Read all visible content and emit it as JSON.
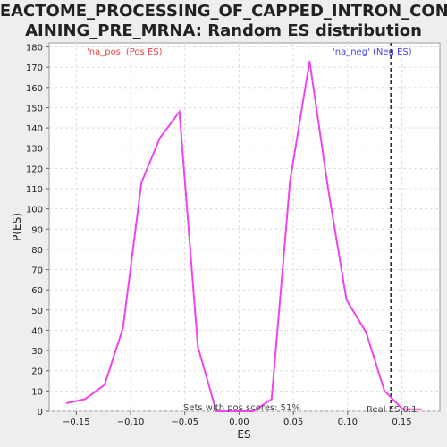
{
  "chart_data": {
    "type": "line",
    "title_lines": [
      "REACTOME_PROCESSING_OF_CAPPED_INTRON_CONT",
      "AINING_PRE_MRNA: Random ES distribution"
    ],
    "xlabel": "ES",
    "ylabel": "P(ES)",
    "xlim": [
      -0.175,
      0.185
    ],
    "ylim": [
      0,
      182
    ],
    "xticks": [
      -0.15,
      -0.1,
      -0.05,
      0.0,
      0.05,
      0.1,
      0.15
    ],
    "xtick_labels": [
      "−0.15",
      "−0.10",
      "−0.05",
      "0.00",
      "0.05",
      "0.10",
      "0.15"
    ],
    "yticks": [
      0,
      10,
      20,
      30,
      40,
      50,
      60,
      70,
      80,
      90,
      100,
      110,
      120,
      130,
      140,
      150,
      160,
      170,
      180
    ],
    "grid": true,
    "series": [
      {
        "color": "#ee44ee",
        "x": [
          -0.159,
          -0.142,
          -0.124,
          -0.107,
          -0.09,
          -0.073,
          -0.055,
          -0.038,
          -0.021,
          -0.004,
          0.013,
          0.03,
          0.047,
          0.065,
          0.082,
          0.099,
          0.117,
          0.134,
          0.151,
          0.168
        ],
        "y": [
          4,
          6,
          13,
          41,
          113,
          135,
          148,
          32,
          0,
          0,
          0,
          6,
          114,
          173,
          110,
          55,
          39,
          10,
          1,
          1
        ]
      }
    ],
    "real_es_x": 0.14,
    "annotations": {
      "na_pos": "'na_pos' (Pos ES)",
      "na_neg": "'na_neg' (Neg ES)",
      "sets_with_pos": "Sets with pos scores: 51%",
      "real_es": "Real ES 0.1"
    },
    "colors": {
      "na_pos": "#ee4444",
      "na_neg": "#4444ee",
      "real_es_line": "#333333"
    }
  }
}
